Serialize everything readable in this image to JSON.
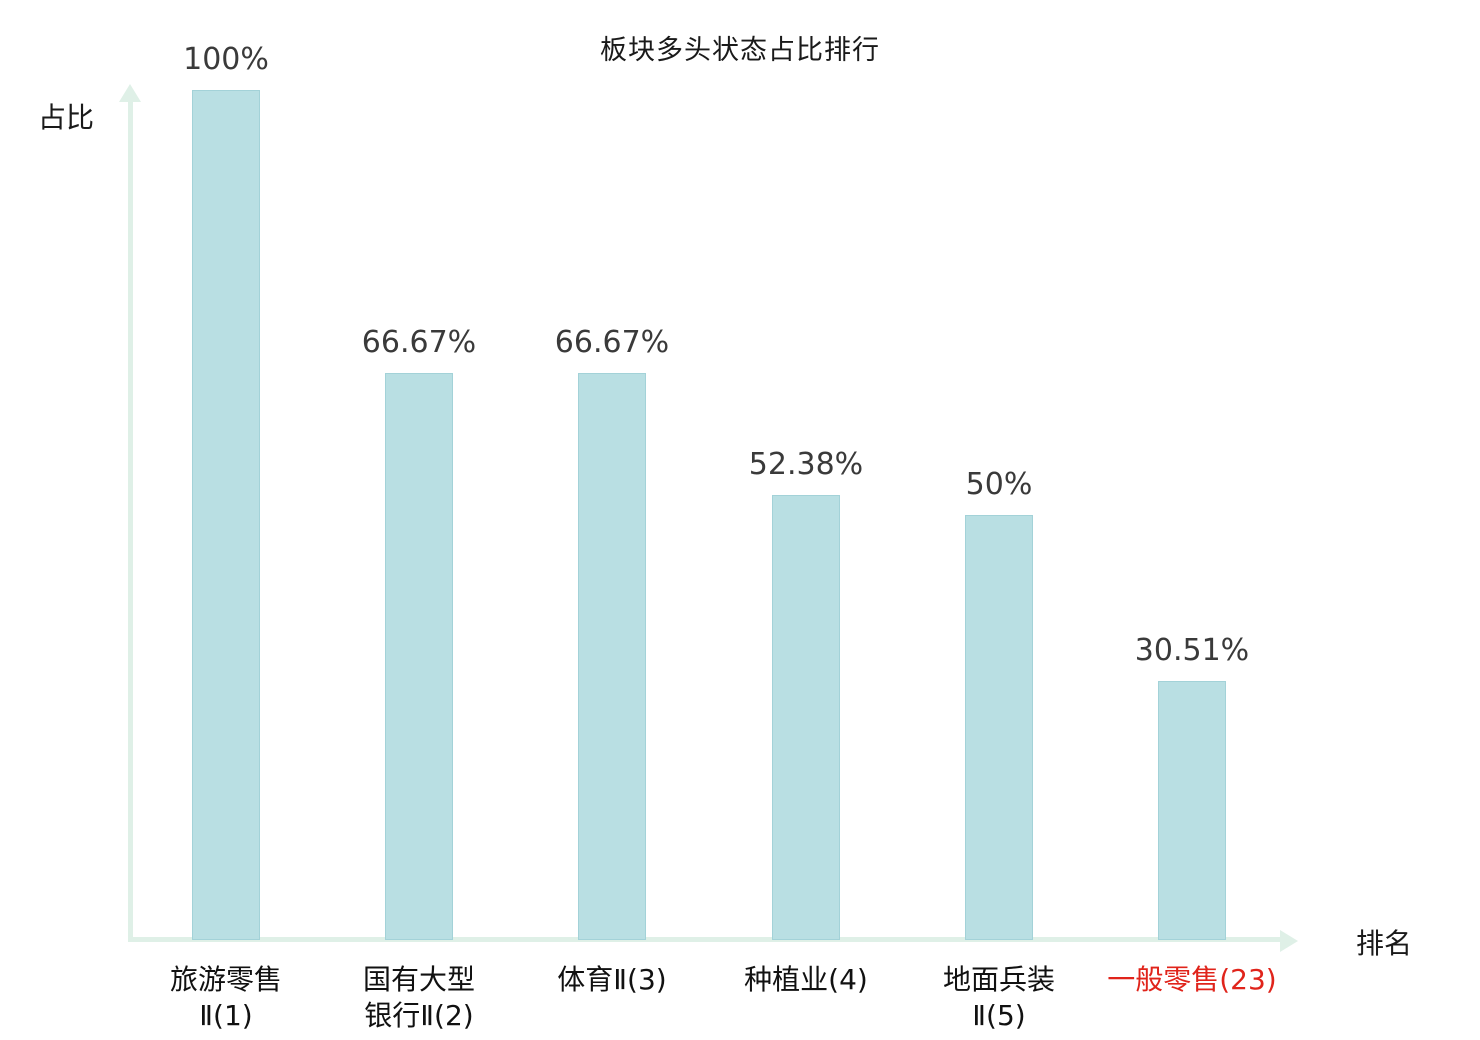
{
  "title": "板块多头状态占比排行",
  "axes": {
    "y_label": "占比",
    "x_label": "排名"
  },
  "chart_data": {
    "type": "bar",
    "title": "板块多头状态占比排行",
    "xlabel": "排名",
    "ylabel": "占比",
    "ylim": [
      0,
      100
    ],
    "grid": false,
    "legend": "none",
    "categories": [
      "旅游零售Ⅱ(1)",
      "国有大型银行Ⅱ(2)",
      "体育Ⅱ(3)",
      "种植业(4)",
      "地面兵装Ⅱ(5)",
      "一般零售(23)"
    ],
    "category_lines": [
      [
        "旅游零售",
        "Ⅱ(1)"
      ],
      [
        "国有大型",
        "银行Ⅱ(2)"
      ],
      [
        "体育Ⅱ(3)"
      ],
      [
        "种植业(4)"
      ],
      [
        "地面兵装",
        "Ⅱ(5)"
      ],
      [
        "一般零售(23)"
      ]
    ],
    "values": [
      100,
      66.67,
      66.67,
      52.38,
      50,
      30.51
    ],
    "value_labels": [
      "100%",
      "66.67%",
      "66.67%",
      "52.38%",
      "50%",
      "30.51%"
    ],
    "highlight_index": 5,
    "colors": {
      "bar_fill": "#b9dfe3",
      "bar_border": "#a3d2d8",
      "axis": "#dff0e7",
      "value_text": "#3a3a3a",
      "category_text": "#111111",
      "highlight_text": "#e0241b"
    }
  }
}
